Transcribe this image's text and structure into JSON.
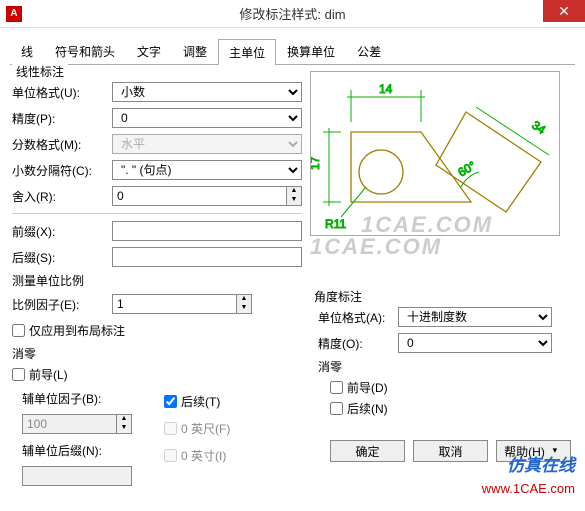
{
  "window": {
    "title": "修改标注样式: dim",
    "app_icon_letter": "A"
  },
  "tabs": {
    "items": [
      "线",
      "符号和箭头",
      "文字",
      "调整",
      "主单位",
      "换算单位",
      "公差"
    ],
    "active_index": 4
  },
  "linear": {
    "legend": "线性标注",
    "unit_format_label": "单位格式(U):",
    "unit_format_value": "小数",
    "precision_label": "精度(P):",
    "precision_value": "0",
    "fraction_format_label": "分数格式(M):",
    "fraction_format_value": "水平",
    "decimal_sep_label": "小数分隔符(C):",
    "decimal_sep_value": "\". \" (句点)",
    "round_label": "舍入(R):",
    "round_value": "0",
    "prefix_label": "前缀(X):",
    "prefix_value": "",
    "suffix_label": "后缀(S):",
    "suffix_value": ""
  },
  "scale": {
    "legend": "测量单位比例",
    "factor_label": "比例因子(E):",
    "factor_value": "1",
    "apply_layout_label": "仅应用到布局标注"
  },
  "zero_linear": {
    "legend": "消零",
    "leading_label": "前导(L)",
    "trailing_label": "后续(T)",
    "trailing_checked": true,
    "subunit_factor_label": "辅单位因子(B):",
    "subunit_factor_value": "100",
    "subunit_suffix_label": "辅单位后缀(N):",
    "subunit_suffix_value": "",
    "feet_label": "0 英尺(F)",
    "inches_label": "0 英寸(I)"
  },
  "angular": {
    "legend": "角度标注",
    "unit_format_label": "单位格式(A):",
    "unit_format_value": "十进制度数",
    "precision_label": "精度(O):",
    "precision_value": "0"
  },
  "zero_angular": {
    "legend": "消零",
    "leading_label": "前导(D)",
    "trailing_label": "后续(N)"
  },
  "footer": {
    "ok": "确定",
    "cancel": "取消",
    "help": "帮助(H)"
  },
  "preview": {
    "dim_h": "14",
    "dim_v": "17",
    "dim_r": "R11",
    "dim_angle": "60°",
    "dim_diag": "34",
    "colors": {
      "outline": "#a08000",
      "dim": "#00b000"
    }
  },
  "watermark": {
    "center": "1CAE.COM",
    "brand": "仿真在线",
    "url": "www.1CAE.com"
  }
}
